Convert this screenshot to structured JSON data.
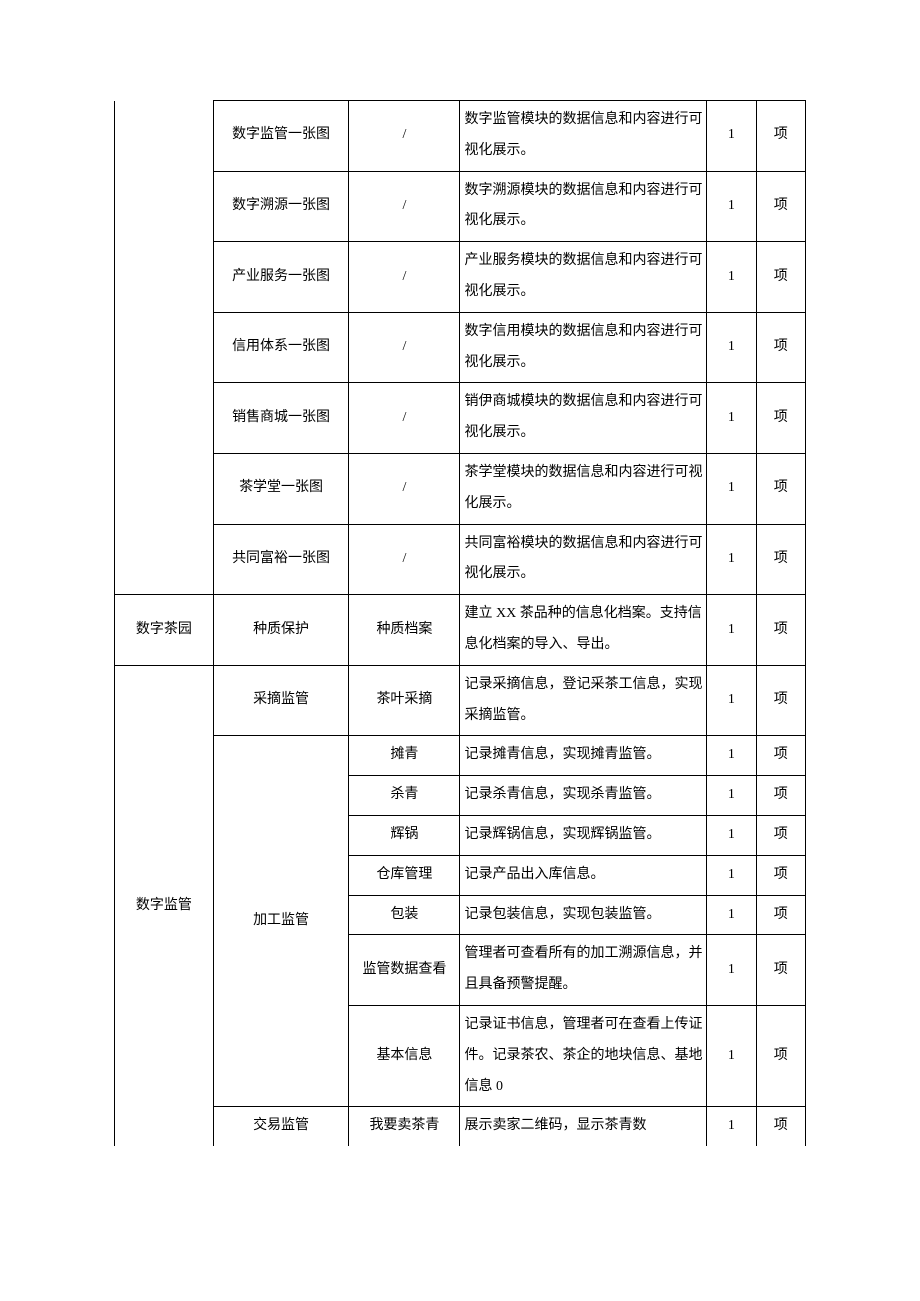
{
  "rows": [
    {
      "c1": "",
      "c2": "数字监管一张图",
      "c3": "/",
      "c4": "数字监管模块的数据信息和内容进行可视化展示。",
      "c5": "1",
      "c6": "项"
    },
    {
      "c1": "",
      "c2": "数字溯源一张图",
      "c3": "/",
      "c4": "数字溯源模块的数据信息和内容进行可视化展示。",
      "c5": "1",
      "c6": "项"
    },
    {
      "c1": "",
      "c2": "产业服务一张图",
      "c3": "/",
      "c4": "产业服务模块的数据信息和内容进行可视化展示。",
      "c5": "1",
      "c6": "项"
    },
    {
      "c1": "",
      "c2": "信用体系一张图",
      "c3": "/",
      "c4": "数字信用模块的数据信息和内容进行可视化展示。",
      "c5": "1",
      "c6": "项"
    },
    {
      "c1": "",
      "c2": "销售商城一张图",
      "c3": "/",
      "c4": "销伊商城模块的数据信息和内容进行可视化展示。",
      "c5": "1",
      "c6": "项"
    },
    {
      "c1": "",
      "c2": "茶学堂一张图",
      "c3": "/",
      "c4": "茶学堂模块的数据信息和内容进行可视化展示。",
      "c5": "1",
      "c6": "项"
    },
    {
      "c1": "",
      "c2": "共同富裕一张图",
      "c3": "/",
      "c4": "共同富裕模块的数据信息和内容进行可视化展示。",
      "c5": "1",
      "c6": "项"
    },
    {
      "c1": "数字茶园",
      "c2": "种质保护",
      "c3": "种质档案",
      "c4": "建立 XX 茶品种的信息化档案。支持信息化档案的导入、导出。",
      "c5": "1",
      "c6": "项"
    },
    {
      "c1": "",
      "c2": "采摘监管",
      "c3": "茶叶采摘",
      "c4": "记录采摘信息，登记采茶工信息，实现采摘监管。",
      "c5": "1",
      "c6": "项"
    },
    {
      "c1": "",
      "c2": "",
      "c3": "摊青",
      "c4": "记录摊青信息，实现摊青监管。",
      "c5": "1",
      "c6": "项"
    },
    {
      "c1": "",
      "c2": "",
      "c3": "杀青",
      "c4": "记录杀青信息，实现杀青监管。",
      "c5": "1",
      "c6": "项"
    },
    {
      "c1": "",
      "c2": "",
      "c3": "辉锅",
      "c4": "记录辉锅信息，实现辉锅监管。",
      "c5": "1",
      "c6": "项"
    },
    {
      "c1": "数字监管",
      "c2": "",
      "c3": "仓库管理",
      "c4": "记录产品出入库信息。",
      "c5": "1",
      "c6": "项"
    },
    {
      "c1": "",
      "c2": "加工监管",
      "c3": "包装",
      "c4": "记录包装信息，实现包装监管。",
      "c5": "1",
      "c6": "项"
    },
    {
      "c1": "",
      "c2": "",
      "c3": "监管数据查看",
      "c4": "管理者可查看所有的加工溯源信息，并且具备预警提醒。",
      "c5": "1",
      "c6": "项"
    },
    {
      "c1": "",
      "c2": "",
      "c3": "基本信息",
      "c4": "记录证书信息，管理者可在查看上传证件。记录茶农、茶企的地块信息、基地信息 0",
      "c5": "1",
      "c6": "项"
    },
    {
      "c1": "",
      "c2": "交易监管",
      "c3": "我要卖茶青",
      "c4": "展示卖家二维码，显示茶青数",
      "c5": "1",
      "c6": "项"
    }
  ],
  "col1_spans": [
    {
      "start": 0,
      "end": 6,
      "open_top": true,
      "open_bottom": false
    },
    {
      "start": 7,
      "end": 7,
      "open_top": false,
      "open_bottom": false
    },
    {
      "start": 8,
      "end": 16,
      "open_top": false,
      "open_bottom": true
    }
  ],
  "col2_spans": [
    {
      "start": 9,
      "end": 15,
      "open_top": false,
      "open_bottom": false
    },
    {
      "start": 16,
      "end": 16,
      "open_top": false,
      "open_bottom": true
    }
  ]
}
